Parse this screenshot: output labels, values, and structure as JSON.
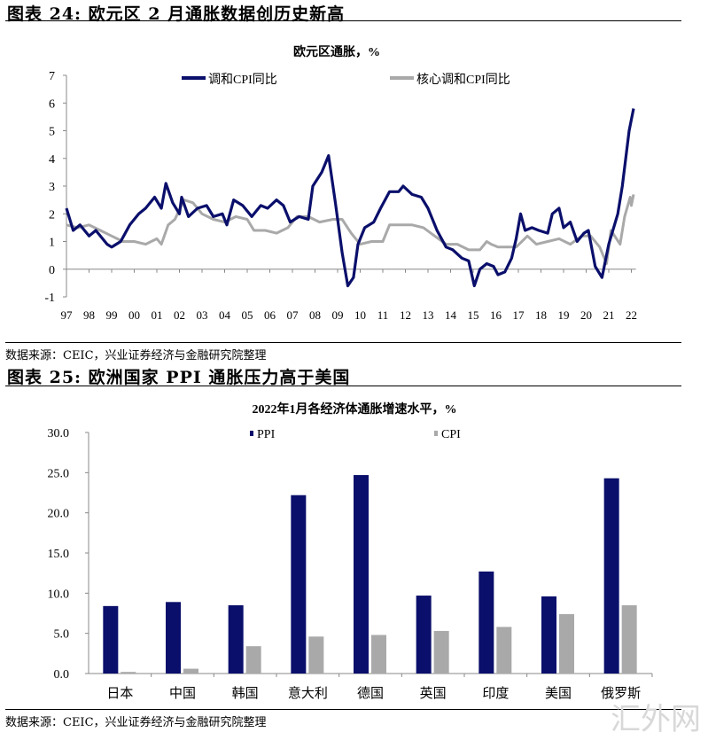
{
  "figure24": {
    "title": "图表 24: 欧元区 2 月通胀数据创历史新高",
    "source": "数据来源：CEIC，兴业证券经济与金融研究院整理"
  },
  "figure25": {
    "title": "图表 25: 欧洲国家 PPI 通胀压力高于美国",
    "source": "数据来源：CEIC，兴业证券经济与金融研究院整理"
  },
  "watermark": "汇外网",
  "colors": {
    "navy": "#0a0f6b",
    "gray": "#a9a9a9"
  },
  "chart_data": [
    {
      "type": "line",
      "title": "欧元区通胀，%",
      "xlabel": "",
      "ylabel": "",
      "ylim": [
        -1,
        7
      ],
      "yticks": [
        "-1",
        "0",
        "1",
        "2",
        "3",
        "4",
        "5",
        "6",
        "7"
      ],
      "xlim": [
        1997,
        2022.25
      ],
      "xticks": [
        "97",
        "98",
        "99",
        "00",
        "01",
        "02",
        "03",
        "04",
        "05",
        "06",
        "07",
        "08",
        "09",
        "10",
        "11",
        "12",
        "13",
        "14",
        "15",
        "16",
        "17",
        "18",
        "19",
        "20",
        "21",
        "22"
      ],
      "legend_position": "top",
      "series": [
        {
          "name": "调和CPI同比",
          "color": "#0a0f6b",
          "x": [
            1997.0,
            1997.3,
            1997.6,
            1998.0,
            1998.3,
            1998.6,
            1998.8,
            1999.0,
            1999.4,
            1999.8,
            2000.2,
            2000.5,
            2000.9,
            2001.2,
            2001.4,
            2001.7,
            2002.0,
            2002.1,
            2002.4,
            2002.8,
            2003.2,
            2003.5,
            2003.9,
            2004.1,
            2004.4,
            2004.8,
            2005.2,
            2005.6,
            2005.9,
            2006.3,
            2006.6,
            2006.9,
            2007.3,
            2007.7,
            2007.9,
            2008.3,
            2008.6,
            2008.9,
            2009.2,
            2009.45,
            2009.7,
            2009.9,
            2010.2,
            2010.6,
            2010.9,
            2011.3,
            2011.7,
            2011.9,
            2012.3,
            2012.7,
            2013.0,
            2013.4,
            2013.8,
            2014.1,
            2014.5,
            2014.8,
            2015.05,
            2015.3,
            2015.6,
            2015.9,
            2016.1,
            2016.4,
            2016.7,
            2016.9,
            2017.1,
            2017.3,
            2017.6,
            2017.9,
            2018.3,
            2018.5,
            2018.8,
            2019.0,
            2019.3,
            2019.6,
            2019.9,
            2020.1,
            2020.4,
            2020.7,
            2021.0,
            2021.4,
            2021.6,
            2021.9,
            2022.1
          ],
          "y": [
            2.2,
            1.4,
            1.6,
            1.2,
            1.4,
            1.1,
            0.9,
            0.8,
            1.0,
            1.6,
            2.0,
            2.2,
            2.6,
            2.2,
            3.1,
            2.4,
            2.0,
            2.6,
            1.9,
            2.2,
            2.3,
            1.9,
            2.0,
            1.6,
            2.5,
            2.3,
            1.9,
            2.3,
            2.2,
            2.5,
            2.3,
            1.7,
            1.9,
            1.8,
            3.0,
            3.5,
            4.1,
            2.4,
            0.6,
            -0.6,
            -0.3,
            0.9,
            1.5,
            1.7,
            2.2,
            2.8,
            2.8,
            3.0,
            2.7,
            2.6,
            2.2,
            1.4,
            0.8,
            0.7,
            0.4,
            0.3,
            -0.6,
            0.0,
            0.2,
            0.1,
            -0.2,
            -0.1,
            0.4,
            1.1,
            2.0,
            1.4,
            1.5,
            1.4,
            1.3,
            2.0,
            2.2,
            1.5,
            1.7,
            1.0,
            1.3,
            1.4,
            0.1,
            -0.3,
            0.9,
            2.0,
            3.0,
            5.0,
            5.8
          ]
        },
        {
          "name": "核心调和CPI同比",
          "color": "#a9a9a9",
          "x": [
            1997.0,
            1997.5,
            1998.0,
            1998.5,
            1999.0,
            1999.5,
            2000.0,
            2000.5,
            2001.0,
            2001.2,
            2001.5,
            2001.8,
            2002.2,
            2002.6,
            2003.0,
            2003.5,
            2004.0,
            2004.5,
            2005.0,
            2005.3,
            2005.8,
            2006.3,
            2006.8,
            2007.2,
            2007.7,
            2008.2,
            2008.8,
            2009.2,
            2009.6,
            2010.0,
            2010.5,
            2011.0,
            2011.3,
            2011.8,
            2012.3,
            2012.8,
            2013.3,
            2013.8,
            2014.3,
            2014.8,
            2015.3,
            2015.6,
            2015.8,
            2016.1,
            2016.5,
            2016.9,
            2017.4,
            2017.8,
            2018.3,
            2018.8,
            2019.3,
            2019.8,
            2020.2,
            2020.6,
            2020.9,
            2021.1,
            2021.5,
            2021.7,
            2021.95,
            2022.0,
            2022.1
          ],
          "y": [
            1.6,
            1.5,
            1.6,
            1.4,
            1.2,
            1.0,
            1.0,
            0.9,
            1.1,
            0.9,
            1.6,
            1.8,
            2.5,
            2.4,
            2.0,
            1.8,
            1.7,
            1.9,
            1.8,
            1.4,
            1.4,
            1.3,
            1.5,
            1.9,
            1.9,
            1.7,
            1.8,
            1.8,
            1.3,
            0.9,
            1.0,
            1.0,
            1.6,
            1.6,
            1.6,
            1.5,
            1.2,
            0.9,
            0.9,
            0.7,
            0.7,
            1.0,
            0.9,
            0.8,
            0.8,
            0.8,
            1.2,
            0.9,
            1.0,
            1.1,
            0.9,
            1.2,
            1.2,
            0.8,
            0.2,
            1.4,
            0.9,
            1.9,
            2.6,
            2.3,
            2.7
          ]
        }
      ]
    },
    {
      "type": "bar",
      "title": "2022年1月各经济体通胀增速水平，%",
      "xlabel": "",
      "ylabel": "",
      "ylim": [
        0,
        30
      ],
      "yticks": [
        "0.0",
        "5.0",
        "10.0",
        "15.0",
        "20.0",
        "25.0",
        "30.0"
      ],
      "legend_position": "top",
      "categories": [
        "日本",
        "中国",
        "韩国",
        "意大利",
        "德国",
        "英国",
        "印度",
        "美国",
        "俄罗斯"
      ],
      "series": [
        {
          "name": "PPI",
          "color": "#0a0f6b",
          "values": [
            8.4,
            8.9,
            8.5,
            22.2,
            24.7,
            9.7,
            12.7,
            9.6,
            24.3
          ]
        },
        {
          "name": "CPI",
          "color": "#a9a9a9",
          "values": [
            0.2,
            0.6,
            3.4,
            4.6,
            4.8,
            5.3,
            5.8,
            7.4,
            8.5
          ]
        }
      ]
    }
  ]
}
